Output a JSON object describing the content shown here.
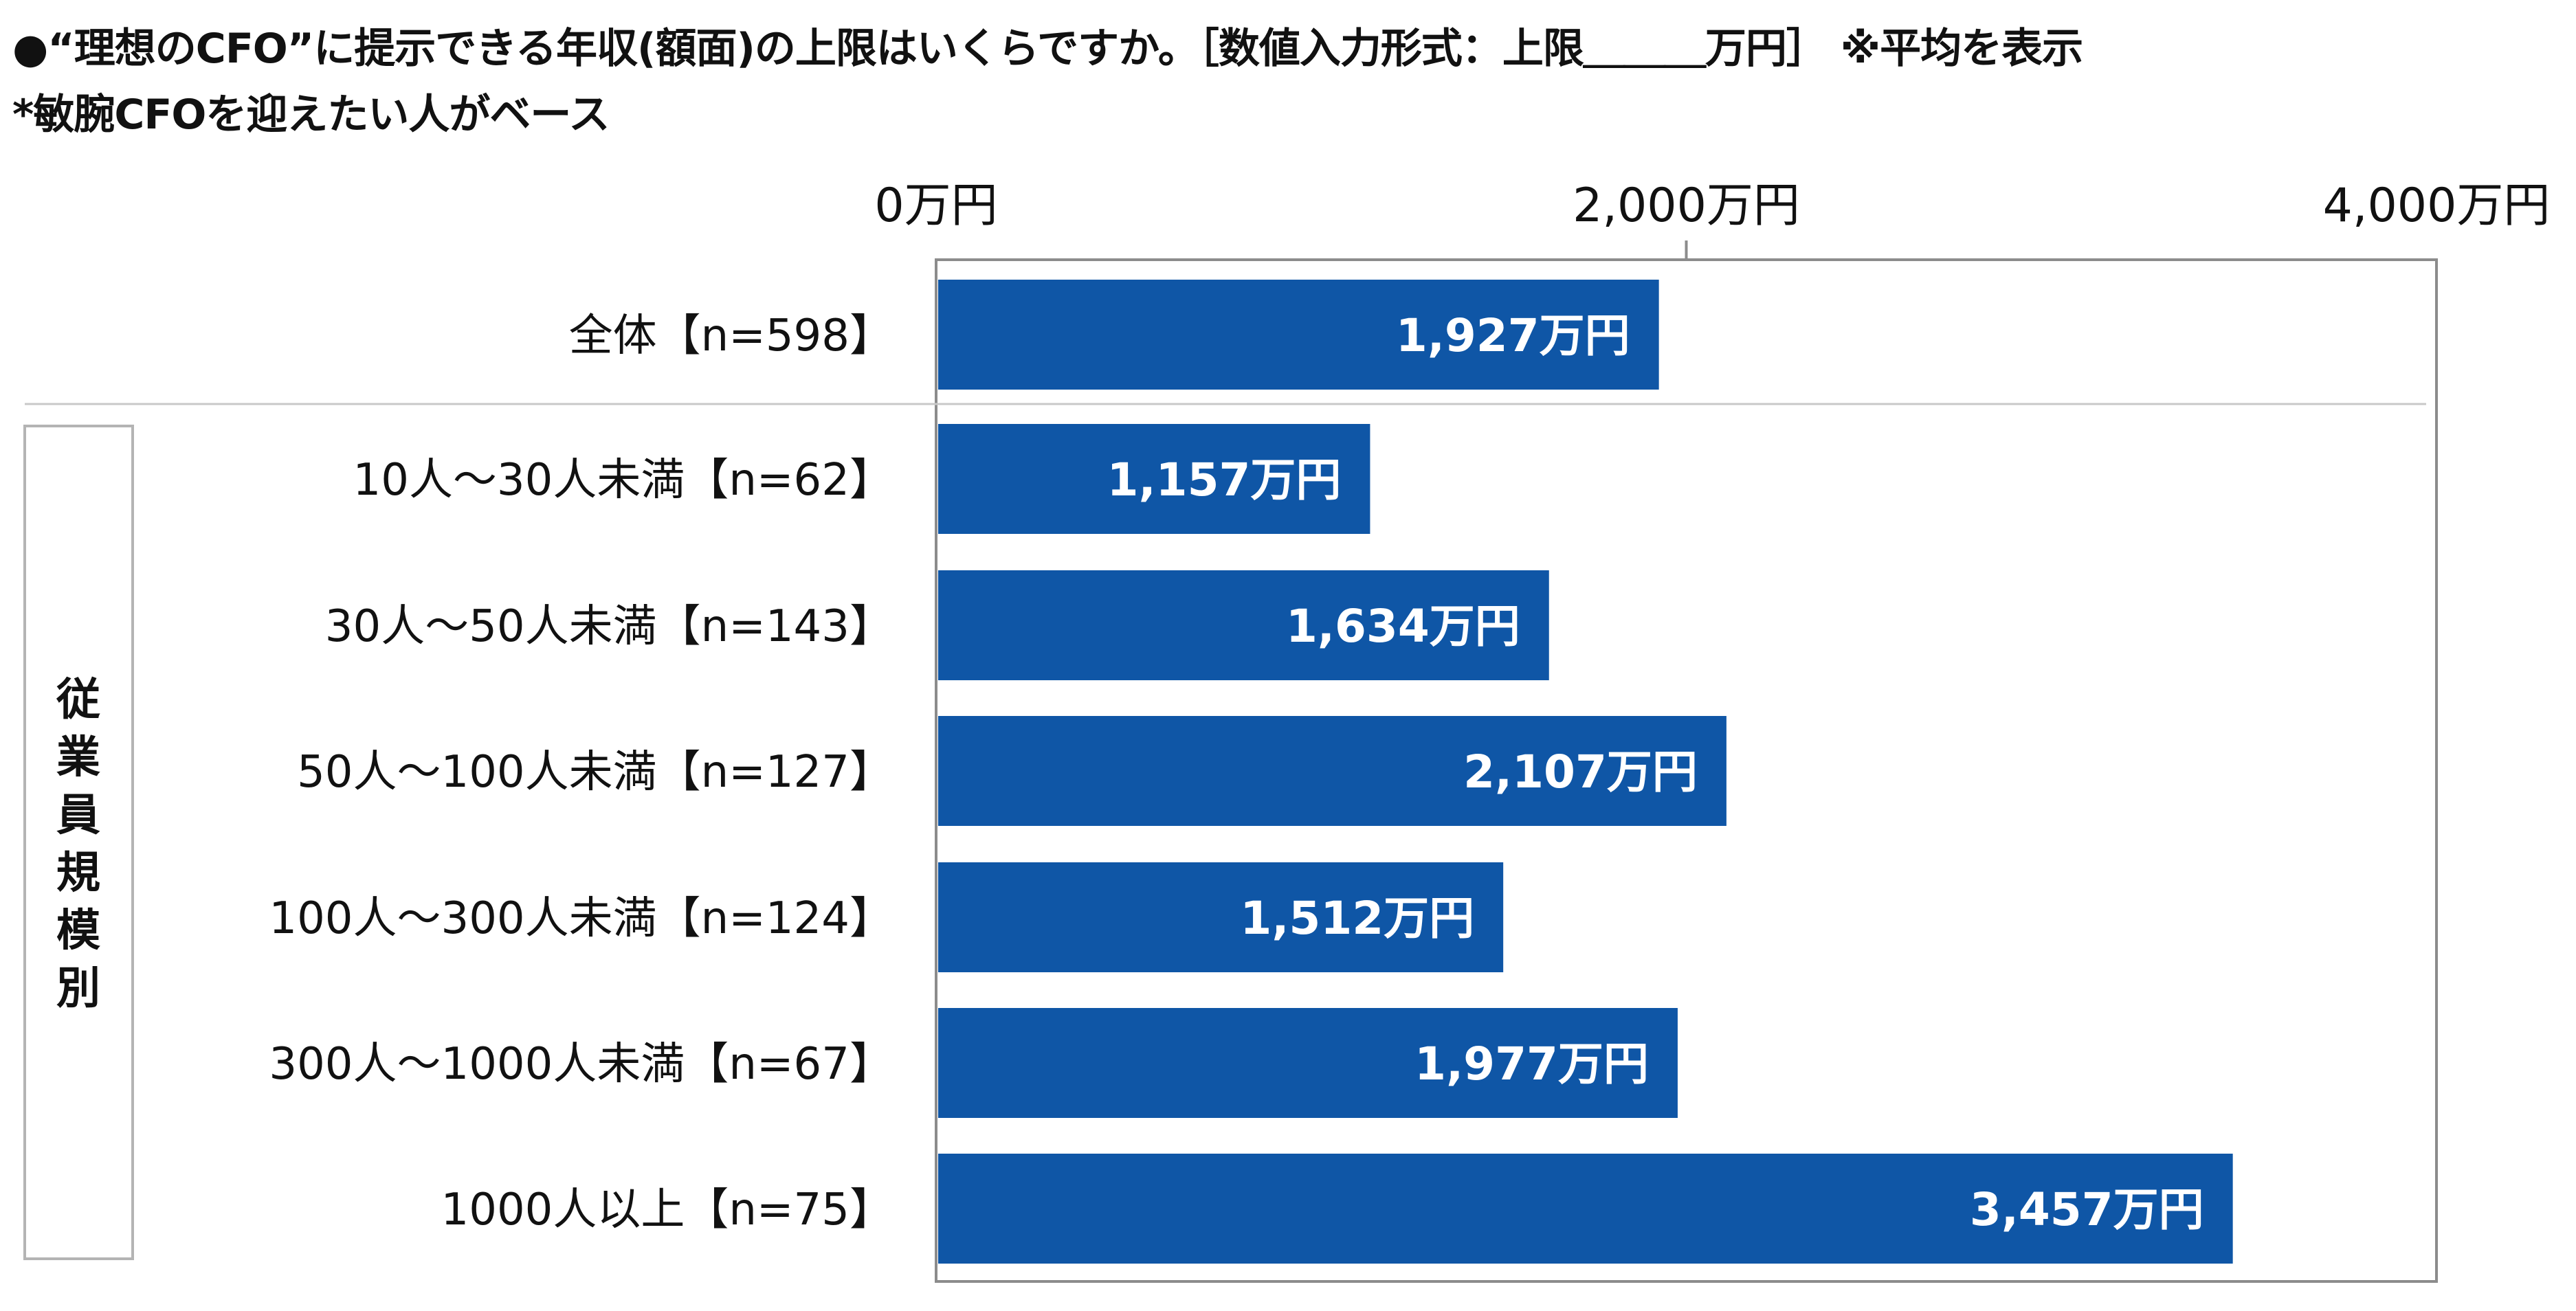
{
  "header": {
    "line1": "●“理想のCFO”に提示できる年収(額面)の上限はいくらですか。［数値入力形式：上限＿＿＿万円］ ※平均を表示",
    "line2": "*敏腕CFOを迎えたい人がベース"
  },
  "chart_data": {
    "type": "bar",
    "orientation": "horizontal",
    "xlim": [
      0,
      4000
    ],
    "xticks": [
      0,
      2000,
      4000
    ],
    "xtick_labels": [
      "0万円",
      "2,000万円",
      "4,000万円"
    ],
    "group_label": "従業員規模別",
    "categories": [
      "全体【n=598】",
      "10人～30人未満【n=62】",
      "30人～50人未満【n=143】",
      "50人～100人未満【n=127】",
      "100人～300人未満【n=124】",
      "300人～1000人未満【n=67】",
      "1000人以上【n=75】"
    ],
    "values": [
      1927,
      1157,
      1634,
      2107,
      1512,
      1977,
      3457
    ],
    "value_labels": [
      "1,927万円",
      "1,157万円",
      "1,634万円",
      "2,107万円",
      "1,512万円",
      "1,977万円",
      "3,457万円"
    ],
    "bar_color": "#0f56a6",
    "grid": false
  }
}
